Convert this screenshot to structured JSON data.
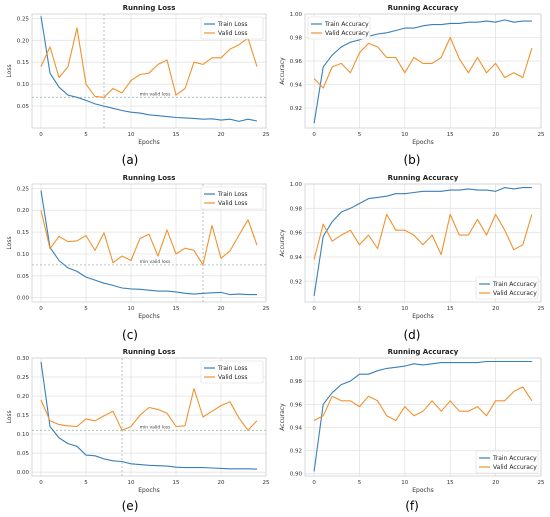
{
  "colors": {
    "train": "#3a7fb8",
    "valid": "#f0922e",
    "grid": "#e3e3e3",
    "marker": "#9fb7ad"
  },
  "chart_data": [
    {
      "id": "a",
      "panel_label": "(a)",
      "type": "line",
      "title": "Running Loss",
      "xlabel": "Epochs",
      "ylabel": "Loss",
      "xlim": [
        -1,
        25
      ],
      "ylim": [
        0,
        0.26
      ],
      "xticks": [
        0,
        5,
        10,
        15,
        20,
        25
      ],
      "yticks": [
        0.05,
        0.1,
        0.15,
        0.2,
        0.25
      ],
      "ytick_labels": [
        "0.05",
        "0.10",
        "0.15",
        "0.20",
        "0.25"
      ],
      "legend": "top-right",
      "x": [
        0,
        1,
        2,
        3,
        4,
        5,
        6,
        7,
        8,
        9,
        10,
        11,
        12,
        13,
        14,
        15,
        16,
        17,
        18,
        19,
        20,
        21,
        22,
        23,
        24
      ],
      "series": [
        {
          "name": "Train Loss",
          "color_key": "train",
          "values": [
            0.255,
            0.125,
            0.093,
            0.075,
            0.07,
            0.063,
            0.055,
            0.05,
            0.045,
            0.04,
            0.036,
            0.034,
            0.03,
            0.028,
            0.026,
            0.024,
            0.023,
            0.022,
            0.02,
            0.021,
            0.018,
            0.02,
            0.015,
            0.02,
            0.016
          ]
        },
        {
          "name": "Valid Loss",
          "color_key": "valid",
          "values": [
            0.14,
            0.185,
            0.115,
            0.14,
            0.228,
            0.1,
            0.072,
            0.07,
            0.09,
            0.08,
            0.108,
            0.122,
            0.125,
            0.145,
            0.155,
            0.075,
            0.09,
            0.15,
            0.145,
            0.16,
            0.16,
            0.18,
            0.19,
            0.205,
            0.14
          ]
        }
      ],
      "vline": 7,
      "hline": 0.07,
      "hline_label": "min valid loss"
    },
    {
      "id": "b",
      "panel_label": "(b)",
      "type": "line",
      "title": "Running Accuracy",
      "xlabel": "Epochs",
      "ylabel": "Accuracy",
      "xlim": [
        -1,
        25
      ],
      "ylim": [
        0.903,
        1.0
      ],
      "xticks": [
        0,
        5,
        10,
        15,
        20,
        25
      ],
      "yticks": [
        0.92,
        0.94,
        0.96,
        0.98,
        1.0
      ],
      "ytick_labels": [
        "0.92",
        "0.94",
        "0.96",
        "0.98",
        "1.00"
      ],
      "legend": "top-left",
      "x": [
        0,
        1,
        2,
        3,
        4,
        5,
        6,
        7,
        8,
        9,
        10,
        11,
        12,
        13,
        14,
        15,
        16,
        17,
        18,
        19,
        20,
        21,
        22,
        23,
        24
      ],
      "series": [
        {
          "name": "Train Accuracy",
          "color_key": "train",
          "values": [
            0.907,
            0.955,
            0.965,
            0.972,
            0.976,
            0.978,
            0.981,
            0.983,
            0.984,
            0.986,
            0.988,
            0.988,
            0.99,
            0.991,
            0.991,
            0.992,
            0.992,
            0.993,
            0.993,
            0.994,
            0.993,
            0.995,
            0.993,
            0.994,
            0.994
          ]
        },
        {
          "name": "Valid Accuracy",
          "color_key": "valid",
          "values": [
            0.945,
            0.937,
            0.955,
            0.958,
            0.95,
            0.967,
            0.975,
            0.972,
            0.963,
            0.963,
            0.95,
            0.963,
            0.958,
            0.958,
            0.963,
            0.98,
            0.962,
            0.95,
            0.963,
            0.95,
            0.958,
            0.946,
            0.95,
            0.946,
            0.971
          ]
        }
      ]
    },
    {
      "id": "c",
      "panel_label": "(c)",
      "type": "line",
      "title": "Running Loss",
      "xlabel": "Epochs",
      "ylabel": "Loss",
      "xlim": [
        -1,
        25
      ],
      "ylim": [
        -0.01,
        0.26
      ],
      "xticks": [
        0,
        5,
        10,
        15,
        20,
        25
      ],
      "yticks": [
        0.0,
        0.05,
        0.1,
        0.15,
        0.2,
        0.25
      ],
      "ytick_labels": [
        "0.00",
        "0.05",
        "0.10",
        "0.15",
        "0.20",
        "0.25"
      ],
      "legend": "top-right",
      "x": [
        0,
        1,
        2,
        3,
        4,
        5,
        6,
        7,
        8,
        9,
        10,
        11,
        12,
        13,
        14,
        15,
        16,
        17,
        18,
        19,
        20,
        21,
        22,
        23,
        24
      ],
      "series": [
        {
          "name": "Train Loss",
          "color_key": "train",
          "values": [
            0.245,
            0.115,
            0.085,
            0.068,
            0.06,
            0.047,
            0.04,
            0.033,
            0.028,
            0.022,
            0.02,
            0.019,
            0.017,
            0.015,
            0.015,
            0.013,
            0.01,
            0.008,
            0.01,
            0.011,
            0.012,
            0.007,
            0.008,
            0.007,
            0.007
          ]
        },
        {
          "name": "Valid Loss",
          "color_key": "valid",
          "values": [
            0.2,
            0.112,
            0.14,
            0.128,
            0.13,
            0.142,
            0.108,
            0.148,
            0.08,
            0.095,
            0.085,
            0.135,
            0.145,
            0.095,
            0.155,
            0.1,
            0.113,
            0.108,
            0.075,
            0.165,
            0.09,
            0.107,
            0.143,
            0.178,
            0.12
          ]
        }
      ],
      "vline": 18,
      "hline": 0.075,
      "hline_label": "min valid loss"
    },
    {
      "id": "d",
      "panel_label": "(d)",
      "type": "line",
      "title": "Running Accuracy",
      "xlabel": "Epochs",
      "ylabel": "Accuracy",
      "xlim": [
        -1,
        25
      ],
      "ylim": [
        0.903,
        1.0
      ],
      "xticks": [
        0,
        5,
        10,
        15,
        20,
        25
      ],
      "yticks": [
        0.92,
        0.94,
        0.96,
        0.98,
        1.0
      ],
      "ytick_labels": [
        "0.92",
        "0.94",
        "0.96",
        "0.98",
        "1.00"
      ],
      "legend": "bottom-right",
      "x": [
        0,
        1,
        2,
        3,
        4,
        5,
        6,
        7,
        8,
        9,
        10,
        11,
        12,
        13,
        14,
        15,
        16,
        17,
        18,
        19,
        20,
        21,
        22,
        23,
        24
      ],
      "series": [
        {
          "name": "Train Accuracy",
          "color_key": "train",
          "values": [
            0.908,
            0.957,
            0.969,
            0.977,
            0.98,
            0.984,
            0.988,
            0.989,
            0.99,
            0.992,
            0.992,
            0.993,
            0.994,
            0.994,
            0.994,
            0.995,
            0.995,
            0.996,
            0.995,
            0.995,
            0.994,
            0.997,
            0.996,
            0.997,
            0.997
          ]
        },
        {
          "name": "Valid Accuracy",
          "color_key": "valid",
          "values": [
            0.938,
            0.967,
            0.953,
            0.958,
            0.962,
            0.95,
            0.958,
            0.947,
            0.975,
            0.962,
            0.962,
            0.958,
            0.95,
            0.958,
            0.942,
            0.975,
            0.958,
            0.958,
            0.971,
            0.958,
            0.975,
            0.962,
            0.946,
            0.95,
            0.975
          ]
        }
      ]
    },
    {
      "id": "e",
      "panel_label": "(e)",
      "type": "line",
      "title": "Running Loss",
      "xlabel": "Epochs",
      "ylabel": "Loss",
      "xlim": [
        -1,
        25
      ],
      "ylim": [
        -0.01,
        0.3
      ],
      "xticks": [
        0,
        5,
        10,
        15,
        20,
        25
      ],
      "yticks": [
        0.0,
        0.05,
        0.1,
        0.15,
        0.2,
        0.25,
        0.3
      ],
      "ytick_labels": [
        "0.00",
        "0.05",
        "0.10",
        "0.15",
        "0.20",
        "0.25",
        "0.30"
      ],
      "legend": "top-right",
      "x": [
        0,
        1,
        2,
        3,
        4,
        5,
        6,
        7,
        8,
        9,
        10,
        11,
        12,
        13,
        14,
        15,
        16,
        17,
        18,
        19,
        20,
        21,
        22,
        23,
        24
      ],
      "series": [
        {
          "name": "Train Loss",
          "color_key": "train",
          "values": [
            0.29,
            0.12,
            0.09,
            0.075,
            0.068,
            0.045,
            0.043,
            0.035,
            0.03,
            0.028,
            0.022,
            0.02,
            0.018,
            0.017,
            0.016,
            0.013,
            0.012,
            0.012,
            0.012,
            0.011,
            0.01,
            0.009,
            0.009,
            0.009,
            0.008
          ]
        },
        {
          "name": "Valid Loss",
          "color_key": "valid",
          "values": [
            0.19,
            0.135,
            0.125,
            0.122,
            0.12,
            0.14,
            0.135,
            0.148,
            0.16,
            0.11,
            0.12,
            0.15,
            0.17,
            0.165,
            0.155,
            0.12,
            0.122,
            0.22,
            0.145,
            0.16,
            0.175,
            0.185,
            0.142,
            0.11,
            0.135
          ]
        }
      ],
      "vline": 9,
      "hline": 0.11,
      "hline_label": "min valid loss"
    },
    {
      "id": "f",
      "panel_label": "(f)",
      "type": "line",
      "title": "Running Accuracy",
      "xlabel": "Epochs",
      "ylabel": "Accuracy",
      "xlim": [
        -1,
        25
      ],
      "ylim": [
        0.898,
        1.0
      ],
      "xticks": [
        0,
        5,
        10,
        15,
        20,
        25
      ],
      "yticks": [
        0.9,
        0.92,
        0.94,
        0.96,
        0.98,
        1.0
      ],
      "ytick_labels": [
        "0.90",
        "0.92",
        "0.94",
        "0.96",
        "0.98",
        "1.00"
      ],
      "legend": "bottom-right",
      "x": [
        0,
        1,
        2,
        3,
        4,
        5,
        6,
        7,
        8,
        9,
        10,
        11,
        12,
        13,
        14,
        15,
        16,
        17,
        18,
        19,
        20,
        21,
        22,
        23,
        24
      ],
      "series": [
        {
          "name": "Train Accuracy",
          "color_key": "train",
          "values": [
            0.902,
            0.96,
            0.97,
            0.977,
            0.98,
            0.986,
            0.986,
            0.989,
            0.991,
            0.992,
            0.993,
            0.995,
            0.994,
            0.995,
            0.996,
            0.996,
            0.996,
            0.996,
            0.996,
            0.997,
            0.997,
            0.997,
            0.997,
            0.997,
            0.997
          ]
        },
        {
          "name": "Valid Accuracy",
          "color_key": "valid",
          "values": [
            0.946,
            0.95,
            0.967,
            0.963,
            0.963,
            0.958,
            0.967,
            0.963,
            0.95,
            0.946,
            0.958,
            0.95,
            0.954,
            0.963,
            0.954,
            0.963,
            0.954,
            0.954,
            0.958,
            0.95,
            0.963,
            0.963,
            0.971,
            0.975,
            0.963
          ]
        }
      ]
    }
  ]
}
